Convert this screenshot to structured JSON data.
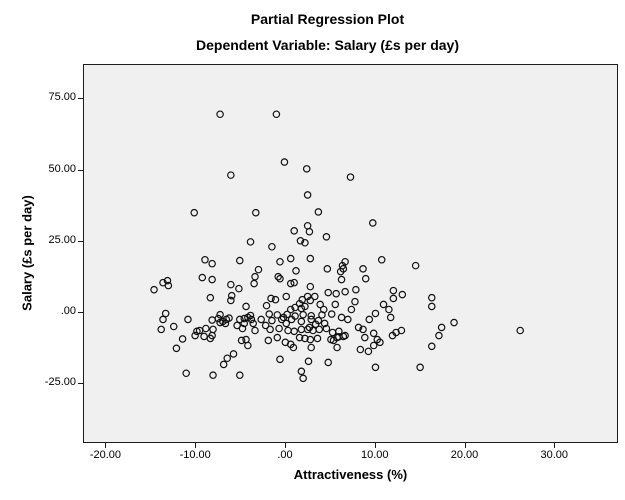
{
  "header": {
    "title": "Partial Regression Plot",
    "subtitle": "Dependent Variable: Salary (£s per day)"
  },
  "chart_data": {
    "type": "scatter",
    "title": "Partial Regression Plot",
    "subtitle": "Dependent Variable: Salary (£s per day)",
    "xlabel": "Attractiveness (%)",
    "ylabel": "Salary (£s per day)",
    "xlim": [
      -22.5,
      37.1
    ],
    "ylim": [
      -46.1,
      87.1
    ],
    "grid": false,
    "legend": "none",
    "marker": "open-circle",
    "marker_radius": 3.2,
    "colors": {
      "plot_background": "#f0f0f0",
      "frame": "#1c1c1c",
      "marker_stroke": "#111111",
      "text": "#000000"
    },
    "x_ticks": [
      {
        "value": -20,
        "label": "-20.00"
      },
      {
        "value": -10,
        "label": "-10.00"
      },
      {
        "value": 0,
        "label": ".00"
      },
      {
        "value": 10,
        "label": "10.00"
      },
      {
        "value": 20,
        "label": "20.00"
      },
      {
        "value": 30,
        "label": "30.00"
      }
    ],
    "y_ticks": [
      {
        "value": 75,
        "label": "75.00"
      },
      {
        "value": 50,
        "label": "50.00"
      },
      {
        "value": 25,
        "label": "25.00"
      },
      {
        "value": 0,
        "label": ".00"
      },
      {
        "value": -25,
        "label": "-25.00"
      }
    ],
    "points": [
      [
        -7.3,
        69.7
      ],
      [
        -1.0,
        69.7
      ],
      [
        -6.1,
        48.2
      ],
      [
        -0.1,
        52.8
      ],
      [
        2.4,
        50.4
      ],
      [
        7.3,
        47.5
      ],
      [
        2.5,
        41.2
      ],
      [
        -10.2,
        34.9
      ],
      [
        -3.3,
        34.9
      ],
      [
        3.7,
        35.2
      ],
      [
        9.8,
        31.3
      ],
      [
        2.5,
        30.3
      ],
      [
        1.0,
        28.5
      ],
      [
        2.7,
        28.2
      ],
      [
        4.6,
        26.4
      ],
      [
        1.7,
        25.0
      ],
      [
        -3.9,
        24.6
      ],
      [
        2.2,
        24.3
      ],
      [
        -1.5,
        22.9
      ],
      [
        -9.0,
        18.3
      ],
      [
        -8.2,
        16.9
      ],
      [
        -5.1,
        18.0
      ],
      [
        -0.6,
        17.6
      ],
      [
        0.6,
        18.7
      ],
      [
        2.8,
        18.7
      ],
      [
        6.7,
        17.6
      ],
      [
        10.8,
        18.3
      ],
      [
        14.6,
        16.2
      ],
      [
        6.4,
        16.2
      ],
      [
        6.5,
        15.1
      ],
      [
        6.2,
        14.1
      ],
      [
        4.7,
        15.1
      ],
      [
        8.7,
        15.1
      ],
      [
        -3.0,
        14.8
      ],
      [
        1.2,
        14.4
      ],
      [
        -3.4,
        12.3
      ],
      [
        -3.5,
        9.9
      ],
      [
        -9.3,
        12.0
      ],
      [
        -8.2,
        11.3
      ],
      [
        -13.7,
        10.2
      ],
      [
        -13.2,
        10.9
      ],
      [
        -13.1,
        9.2
      ],
      [
        -14.7,
        7.7
      ],
      [
        -6.1,
        9.5
      ],
      [
        -5.2,
        8.1
      ],
      [
        6.3,
        11.3
      ],
      [
        9.0,
        11.6
      ],
      [
        -0.8,
        12.3
      ],
      [
        -0.6,
        11.6
      ],
      [
        1.0,
        10.2
      ],
      [
        0.6,
        9.9
      ],
      [
        2.8,
        8.8
      ],
      [
        7.9,
        7.7
      ],
      [
        5.7,
        6.3
      ],
      [
        4.8,
        6.7
      ],
      [
        6.7,
        7.0
      ],
      [
        12.1,
        7.4
      ],
      [
        13.1,
        6.0
      ],
      [
        12.1,
        4.6
      ],
      [
        16.4,
        4.9
      ],
      [
        -8.4,
        4.9
      ],
      [
        -6.0,
        5.6
      ],
      [
        -6.1,
        3.9
      ],
      [
        -4.4,
        1.8
      ],
      [
        0.1,
        5.3
      ],
      [
        -1.6,
        4.6
      ],
      [
        -1.1,
        4.2
      ],
      [
        -2.1,
        2.1
      ],
      [
        1.9,
        4.2
      ],
      [
        1.6,
        2.8
      ],
      [
        2.5,
        5.3
      ],
      [
        3.3,
        5.3
      ],
      [
        2.8,
        3.9
      ],
      [
        2.2,
        1.8
      ],
      [
        1.8,
        1.1
      ],
      [
        1.1,
        1.4
      ],
      [
        0.6,
        0.7
      ],
      [
        3.9,
        2.5
      ],
      [
        4.3,
        0.7
      ],
      [
        5.6,
        2.5
      ],
      [
        7.8,
        3.5
      ],
      [
        7.4,
        0.7
      ],
      [
        11.0,
        2.5
      ],
      [
        11.6,
        0.7
      ],
      [
        16.4,
        1.8
      ],
      [
        -13.4,
        -0.7
      ],
      [
        -7.3,
        -1.1
      ],
      [
        -3.9,
        -1.4
      ],
      [
        10.1,
        -0.7
      ],
      [
        -1.8,
        -0.9
      ],
      [
        -0.9,
        -1.2
      ],
      [
        0.2,
        -1.0
      ],
      [
        1.1,
        -1.6
      ],
      [
        2.0,
        -1.1
      ],
      [
        2.9,
        -1.5
      ],
      [
        4.1,
        -1.2
      ],
      [
        5.2,
        -0.9
      ],
      [
        -13.7,
        -2.8
      ],
      [
        -10.9,
        -2.8
      ],
      [
        -8.2,
        -3.0
      ],
      [
        -7.5,
        -2.5
      ],
      [
        -7.3,
        -3.9
      ],
      [
        -7.0,
        -3.5
      ],
      [
        -6.7,
        -4.2
      ],
      [
        -6.6,
        -2.8
      ],
      [
        -6.3,
        -2.3
      ],
      [
        -5.1,
        -2.8
      ],
      [
        -4.6,
        -2.5
      ],
      [
        -4.2,
        -2.1
      ],
      [
        -3.8,
        -2.8
      ],
      [
        -3.6,
        -4.2
      ],
      [
        -4.6,
        -4.2
      ],
      [
        -5.4,
        -4.9
      ],
      [
        -2.7,
        -2.8
      ],
      [
        -1.5,
        -3.2
      ],
      [
        -0.4,
        -2.8
      ],
      [
        -0.2,
        -2.1
      ],
      [
        0.7,
        -2.8
      ],
      [
        1.8,
        -3.5
      ],
      [
        2.9,
        -2.8
      ],
      [
        3.7,
        -3.2
      ],
      [
        6.3,
        -2.1
      ],
      [
        7.0,
        -2.8
      ],
      [
        9.4,
        -2.8
      ],
      [
        11.8,
        -2.1
      ],
      [
        18.9,
        -3.9
      ],
      [
        0.1,
        -4.2
      ],
      [
        3.4,
        -4.5
      ],
      [
        4.4,
        -4.2
      ],
      [
        -2.2,
        -4.9
      ],
      [
        -12.5,
        -5.3
      ],
      [
        -13.9,
        -6.3
      ],
      [
        -9.6,
        -6.7
      ],
      [
        -8.9,
        -6.0
      ],
      [
        -8.1,
        -6.3
      ],
      [
        -9.9,
        -7.0
      ],
      [
        -4.8,
        -6.0
      ],
      [
        -3.4,
        -6.7
      ],
      [
        -1.7,
        -6.3
      ],
      [
        -0.7,
        -6.0
      ],
      [
        0.3,
        -6.7
      ],
      [
        1.0,
        -7.0
      ],
      [
        1.8,
        -6.3
      ],
      [
        2.5,
        -6.3
      ],
      [
        2.7,
        -5.6
      ],
      [
        3.1,
        -6.7
      ],
      [
        3.8,
        -6.3
      ],
      [
        4.6,
        -6.0
      ],
      [
        5.3,
        -7.4
      ],
      [
        6.0,
        -7.0
      ],
      [
        8.2,
        -5.6
      ],
      [
        8.7,
        -6.3
      ],
      [
        9.9,
        -7.7
      ],
      [
        12.4,
        -7.4
      ],
      [
        13.0,
        -6.7
      ],
      [
        17.5,
        -5.6
      ],
      [
        26.3,
        -6.7
      ],
      [
        -11.5,
        -9.7
      ],
      [
        -10.1,
        -8.5
      ],
      [
        -9.1,
        -8.8
      ],
      [
        -8.4,
        -9.5
      ],
      [
        -8.2,
        -8.5
      ],
      [
        -4.9,
        -10.2
      ],
      [
        -4.4,
        -9.9
      ],
      [
        -1.9,
        -10.2
      ],
      [
        -0.9,
        -9.2
      ],
      [
        0.0,
        -10.9
      ],
      [
        1.6,
        -9.2
      ],
      [
        2.2,
        -9.5
      ],
      [
        2.8,
        -9.9
      ],
      [
        3.6,
        -9.5
      ],
      [
        5.1,
        -9.9
      ],
      [
        5.4,
        -10.2
      ],
      [
        5.8,
        -9.2
      ],
      [
        6.0,
        -8.9
      ],
      [
        6.5,
        -8.8
      ],
      [
        6.7,
        -8.5
      ],
      [
        8.9,
        -9.2
      ],
      [
        10.3,
        -9.9
      ],
      [
        12.0,
        -8.5
      ],
      [
        17.2,
        -8.5
      ],
      [
        -4.2,
        -12.0
      ],
      [
        0.6,
        -11.6
      ],
      [
        0.9,
        -12.7
      ],
      [
        2.9,
        -12.7
      ],
      [
        5.8,
        -12.7
      ],
      [
        8.4,
        -13.4
      ],
      [
        9.3,
        -14.1
      ],
      [
        9.9,
        -12.0
      ],
      [
        10.6,
        -10.9
      ],
      [
        16.4,
        -12.3
      ],
      [
        -12.2,
        -13.0
      ],
      [
        -6.5,
        -16.5
      ],
      [
        -5.8,
        -15.0
      ],
      [
        -6.9,
        -18.7
      ],
      [
        -0.6,
        -16.9
      ],
      [
        2.6,
        -17.6
      ],
      [
        4.8,
        -18.0
      ],
      [
        -11.1,
        -21.8
      ],
      [
        -8.1,
        -22.5
      ],
      [
        -5.1,
        -22.5
      ],
      [
        1.8,
        -21.1
      ],
      [
        2.0,
        -23.6
      ],
      [
        10.1,
        -19.7
      ],
      [
        15.1,
        -19.7
      ]
    ]
  }
}
